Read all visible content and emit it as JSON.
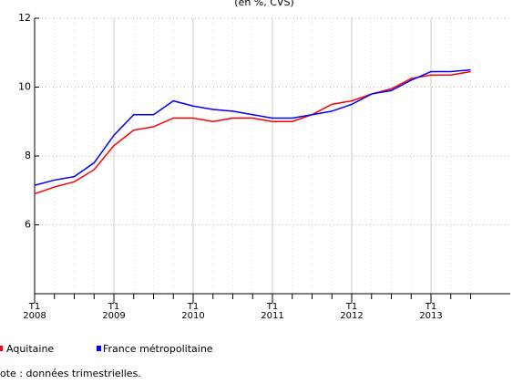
{
  "chart_data": {
    "type": "line",
    "title": "(en %, CVS)",
    "categories": [
      [
        "T1",
        "2008"
      ],
      null,
      null,
      null,
      [
        "T1",
        "2009"
      ],
      null,
      null,
      null,
      [
        "T1",
        "2010"
      ],
      null,
      null,
      null,
      [
        "T1",
        "2011"
      ],
      null,
      null,
      null,
      [
        "T1",
        "2012"
      ],
      null,
      null,
      null,
      [
        "T1",
        "2013"
      ],
      null,
      null
    ],
    "series": [
      {
        "name": "Aquitaine",
        "color": "#ff0000",
        "values": [
          6.9,
          7.1,
          7.25,
          7.6,
          8.3,
          8.75,
          8.85,
          9.1,
          9.1,
          9.0,
          9.1,
          9.1,
          9.0,
          9.0,
          9.2,
          9.5,
          9.6,
          9.8,
          9.95,
          10.25,
          10.35,
          10.35,
          10.45
        ]
      },
      {
        "name": "France métropolitaine",
        "color": "#0000ff",
        "values": [
          7.15,
          7.3,
          7.4,
          7.8,
          8.6,
          9.2,
          9.2,
          9.6,
          9.45,
          9.35,
          9.3,
          9.2,
          9.1,
          9.1,
          9.2,
          9.3,
          9.5,
          9.8,
          9.9,
          10.2,
          10.45,
          10.45,
          10.5
        ]
      }
    ],
    "xlim": [
      0,
      24
    ],
    "ylim": [
      4,
      12
    ],
    "yticks": [
      6,
      8,
      10,
      12
    ],
    "grid": true,
    "note": "ote : données trimestrielles."
  }
}
